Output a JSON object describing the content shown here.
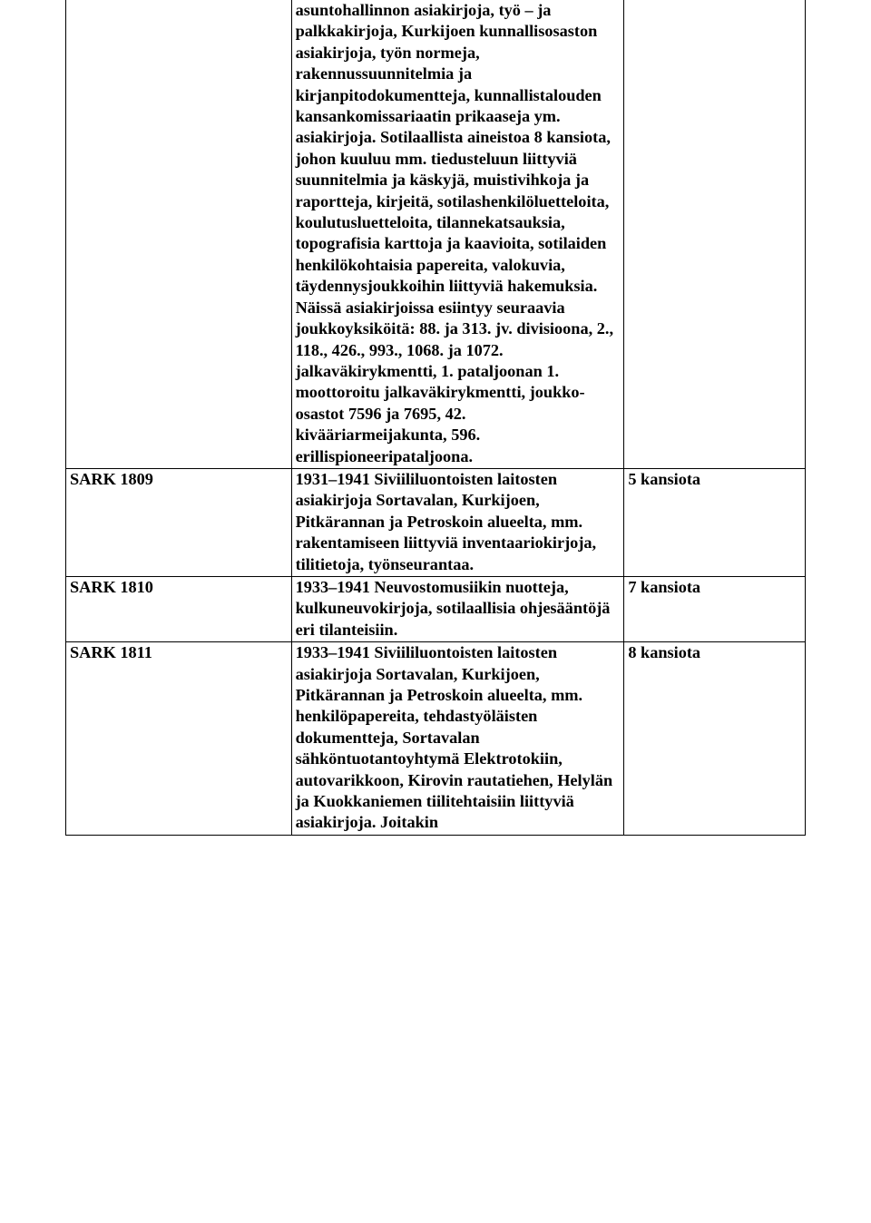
{
  "table": {
    "columns": [
      {
        "width_pct": 30.5
      },
      {
        "width_pct": 45.0
      },
      {
        "width_pct": 24.5
      }
    ],
    "border_color": "#000000",
    "background_color": "#ffffff",
    "text_color": "#000000",
    "font_family": "Times New Roman",
    "font_size_pt": 14,
    "font_weight": "bold",
    "rows": [
      {
        "id": "",
        "desc": "asuntohallinnon asiakirjoja, työ – ja palkkakirjoja, Kurkijoen kunnallisosaston asiakirjoja, työn normeja, rakennussuunnitelmia ja kirjanpitodokumentteja, kunnallistalouden kansankomissariaatin prikaaseja ym. asiakirjoja. Sotilaallista aineistoa 8 kansiota, johon kuuluu mm. tiedusteluun liittyviä suunnitelmia ja käskyjä, muistivihkoja ja raportteja, kirjeitä, sotilashenkilöluetteloita, koulutusluetteloita, tilannekatsauksia, topografisia karttoja ja kaavioita, sotilaiden henkilökohtaisia papereita, valokuvia, täydennysjoukkoihin liittyviä hakemuksia. Näissä asiakirjoissa esiintyy seuraavia joukkoyksiköitä: 88. ja 313. jv. divisioona, 2., 118., 426., 993., 1068. ja 1072. jalkaväkirykmentti, 1. pataljoonan 1. moottoroitu jalkaväkirykmentti, joukko-osastot 7596 ja 7695, 42. kivääriarmeijakunta, 596. erillispioneeripataljoona.",
        "extent": ""
      },
      {
        "id": "SARK 1809",
        "desc": "1931–1941\nSiviililuontoisten laitosten asiakirjoja Sortavalan, Kurkijoen, Pitkärannan ja Petroskoin alueelta, mm. rakentamiseen liittyviä inventaariokirjoja, tilitietoja, työnseurantaa.",
        "extent": "5 kansiota"
      },
      {
        "id": "SARK 1810",
        "desc": "1933–1941\nNeuvostomusiikin nuotteja, kulkuneuvokirjoja, sotilaallisia ohjesääntöjä eri tilanteisiin.",
        "extent": "7 kansiota"
      },
      {
        "id": "SARK 1811",
        "desc": "1933–1941\nSiviililuontoisten laitosten asiakirjoja Sortavalan, Kurkijoen, Pitkärannan ja Petroskoin alueelta, mm. henkilöpapereita, tehdastyöläisten dokumentteja, Sortavalan sähköntuotantoyhtymä Elektrotokiin, autovarikkoon, Kirovin rautatiehen, Helylän ja Kuokkaniemen tiilitehtaisiin liittyviä asiakirjoja. Joitakin",
        "extent": "8 kansiota"
      }
    ]
  }
}
